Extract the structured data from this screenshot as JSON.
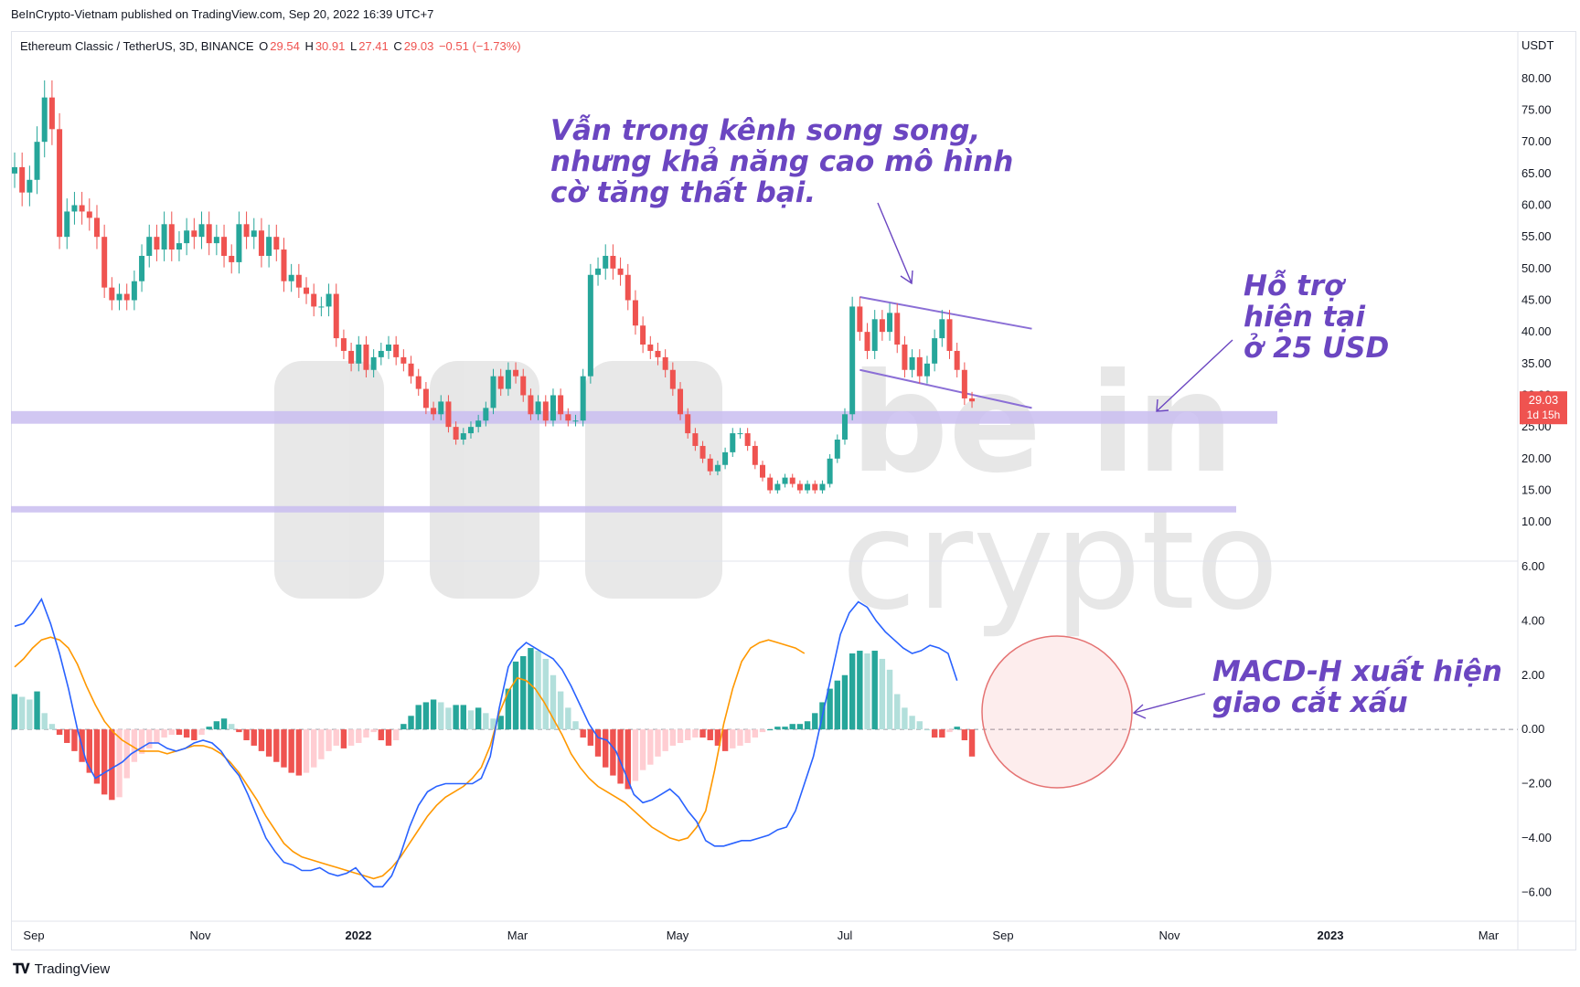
{
  "header": {
    "publisher_line": "BeInCrypto-Vietnam published on TradingView.com, Sep 20, 2022 16:39 UTC+7"
  },
  "symbol": {
    "name": "Ethereum Classic / TetherUS, 3D, BINANCE",
    "o_label": "O",
    "o_val": "29.54",
    "h_label": "H",
    "h_val": "30.91",
    "l_label": "L",
    "l_val": "27.41",
    "c_label": "C",
    "c_val": "29.03",
    "change": "−0.51 (−1.73%)"
  },
  "price_axis": {
    "currency": "USDT",
    "ticks": [
      "80.00",
      "75.00",
      "70.00",
      "65.00",
      "60.00",
      "55.00",
      "50.00",
      "45.00",
      "40.00",
      "35.00",
      "30.00",
      "25.00",
      "20.00",
      "15.00",
      "10.00"
    ],
    "last_price": "29.03",
    "countdown": "1d 15h"
  },
  "macd_axis": {
    "ticks": [
      "6.00",
      "4.00",
      "2.00",
      "0.00",
      "−2.00",
      "−4.00",
      "−6.00"
    ]
  },
  "time_axis": {
    "labels": [
      "Sep",
      "Nov",
      "2022",
      "Mar",
      "May",
      "Jul",
      "Sep",
      "Nov",
      "2023",
      "Mar"
    ]
  },
  "annotations": {
    "channel_line1": "Vẫn trong kênh song song,",
    "channel_line2": "nhưng khả năng cao mô hình",
    "channel_line3": "cờ tăng thất bại.",
    "support_line1": "Hỗ trợ",
    "support_line2": "hiện tại",
    "support_line3": "ở 25 USD",
    "macd_line1": "MACD-H xuất hiện",
    "macd_line2": "giao cắt xấu"
  },
  "watermark": {
    "line1": "be in",
    "line2": "crypto"
  },
  "footer": {
    "brand": "TradingView"
  },
  "colors": {
    "up": "#26a69a",
    "down": "#ef5350",
    "hist_up_strong": "#26a69a",
    "hist_up_weak": "#b2dfdb",
    "hist_down_strong": "#ef5350",
    "hist_down_weak": "#ffcdd2",
    "macd_line": "#2962ff",
    "signal_line": "#ff9800",
    "zone": "#c9bdf0",
    "channel": "#8b6fd6",
    "annotation": "#6b46c1"
  },
  "chart_data": [
    {
      "type": "candlestick",
      "title": "Ethereum Classic / TetherUS, 3D, BINANCE",
      "xlabel": "",
      "ylabel": "USDT",
      "ylim": [
        8,
        82
      ],
      "x_range": [
        "2021-09-01",
        "2023-03-15"
      ],
      "last_close": 29.03,
      "closes": [
        66,
        62,
        64,
        70,
        77,
        72,
        55,
        59,
        60,
        59,
        58,
        55,
        47,
        45,
        46,
        45,
        48,
        52,
        55,
        53,
        57,
        53,
        54,
        56,
        55,
        57,
        54,
        55,
        52,
        51,
        57,
        55,
        56,
        52,
        55,
        53,
        48,
        49,
        47,
        46,
        44,
        44,
        46,
        39,
        37,
        35,
        38,
        34,
        36,
        37,
        38,
        36,
        35,
        33,
        31,
        28,
        27,
        29,
        25,
        23,
        24,
        25,
        26,
        28,
        33,
        31,
        34,
        33,
        30,
        27,
        29,
        26,
        30,
        27,
        26,
        26,
        33,
        49,
        50,
        52,
        50,
        49,
        45,
        41,
        38,
        37,
        36,
        34,
        31,
        27,
        24,
        22,
        20,
        18,
        19,
        21,
        24,
        24,
        22,
        19,
        17,
        15,
        16,
        17,
        16,
        15,
        16,
        15,
        16,
        20,
        23,
        27,
        44,
        40,
        37,
        42,
        40,
        43,
        38,
        34,
        36,
        33,
        35,
        39,
        42,
        37,
        34,
        29.5,
        29.03
      ],
      "support_zones": [
        {
          "low": 25.5,
          "high": 27.5
        },
        {
          "low": 11.5,
          "high": 12.5
        }
      ],
      "channel": {
        "upper": [
          [
            113,
            45.5
          ],
          [
            136,
            40.5
          ]
        ],
        "lower": [
          [
            113,
            34.0
          ],
          [
            136,
            28.0
          ]
        ]
      }
    },
    {
      "type": "macd",
      "ylim": [
        -6.8,
        6.0
      ],
      "histogram": [
        1.3,
        1.2,
        1.1,
        1.4,
        0.6,
        0.2,
        -0.2,
        -0.5,
        -0.8,
        -1.2,
        -1.6,
        -2.0,
        -2.4,
        -2.6,
        -2.5,
        -1.8,
        -1.2,
        -0.9,
        -0.7,
        -0.5,
        -0.3,
        -0.2,
        -0.2,
        -0.3,
        -0.4,
        -0.2,
        0.1,
        0.3,
        0.4,
        0.2,
        -0.1,
        -0.4,
        -0.6,
        -0.8,
        -1.0,
        -1.2,
        -1.4,
        -1.6,
        -1.7,
        -1.6,
        -1.4,
        -1.1,
        -0.8,
        -0.6,
        -0.7,
        -0.6,
        -0.5,
        -0.3,
        -0.1,
        -0.4,
        -0.6,
        -0.4,
        0.2,
        0.5,
        0.9,
        1.0,
        1.1,
        1.0,
        0.8,
        0.9,
        0.9,
        0.7,
        0.8,
        0.6,
        0.4,
        0.5,
        1.5,
        2.5,
        2.7,
        3.0,
        2.9,
        2.6,
        2.0,
        1.4,
        0.8,
        0.3,
        -0.3,
        -0.6,
        -1.0,
        -1.4,
        -1.7,
        -2.0,
        -2.2,
        -1.9,
        -1.5,
        -1.3,
        -1.0,
        -0.8,
        -0.6,
        -0.5,
        -0.4,
        -0.3,
        -0.3,
        -0.4,
        -0.6,
        -0.8,
        -0.7,
        -0.6,
        -0.5,
        -0.3,
        -0.1,
        0.0,
        0.1,
        0.1,
        0.2,
        0.2,
        0.3,
        0.6,
        1.0,
        1.5,
        1.8,
        2.0,
        2.8,
        2.9,
        2.8,
        2.9,
        2.6,
        2.2,
        1.3,
        0.8,
        0.5,
        0.3,
        0.0,
        -0.3,
        -0.3,
        -0.1,
        0.1,
        -0.4,
        -1.0
      ],
      "macd": [
        3.8,
        3.9,
        4.3,
        4.8,
        3.9,
        2.8,
        1.5,
        0.0,
        -1.2,
        -1.8,
        -1.6,
        -1.4,
        -1.2,
        -0.9,
        -0.7,
        -0.5,
        -0.5,
        -0.7,
        -0.8,
        -0.7,
        -0.5,
        -0.4,
        -0.5,
        -0.8,
        -1.3,
        -1.7,
        -2.4,
        -3.2,
        -4.0,
        -4.5,
        -4.9,
        -5.0,
        -5.2,
        -5.2,
        -5.1,
        -5.3,
        -5.4,
        -5.3,
        -5.1,
        -5.5,
        -5.8,
        -5.8,
        -5.4,
        -4.6,
        -3.6,
        -2.8,
        -2.3,
        -2.1,
        -2.0,
        -2.0,
        -2.0,
        -2.0,
        -1.8,
        -1.0,
        0.8,
        2.3,
        2.9,
        3.2,
        3.0,
        2.8,
        2.6,
        2.2,
        1.6,
        0.9,
        0.2,
        -0.3,
        -0.4,
        -0.8,
        -1.6,
        -2.4,
        -2.7,
        -2.6,
        -2.4,
        -2.2,
        -2.5,
        -3.0,
        -3.4,
        -4.1,
        -4.3,
        -4.3,
        -4.2,
        -4.1,
        -4.1,
        -4.0,
        -3.9,
        -3.7,
        -3.6,
        -3.0,
        -2.0,
        -1.0,
        0.5,
        2.0,
        3.5,
        4.3,
        4.7,
        4.5,
        4.0,
        3.6,
        3.3,
        3.0,
        2.8,
        2.9,
        3.1,
        3.0,
        2.8,
        1.8
      ],
      "signal": [
        2.3,
        2.6,
        3.0,
        3.3,
        3.4,
        3.3,
        3.0,
        2.4,
        1.6,
        0.9,
        0.3,
        -0.1,
        -0.4,
        -0.6,
        -0.8,
        -0.8,
        -0.8,
        -0.9,
        -0.8,
        -0.7,
        -0.6,
        -0.6,
        -0.7,
        -0.9,
        -1.2,
        -1.6,
        -2.1,
        -2.6,
        -3.2,
        -3.7,
        -4.2,
        -4.5,
        -4.7,
        -4.8,
        -4.9,
        -5.0,
        -5.1,
        -5.2,
        -5.3,
        -5.4,
        -5.5,
        -5.4,
        -5.1,
        -4.7,
        -4.2,
        -3.7,
        -3.2,
        -2.8,
        -2.5,
        -2.3,
        -2.1,
        -1.8,
        -1.4,
        -0.6,
        0.6,
        1.4,
        1.9,
        1.8,
        1.5,
        1.0,
        0.4,
        -0.2,
        -0.9,
        -1.4,
        -1.8,
        -2.1,
        -2.3,
        -2.5,
        -2.7,
        -3.0,
        -3.3,
        -3.6,
        -3.8,
        -4.0,
        -4.1,
        -4.0,
        -3.6,
        -3.0,
        -1.5,
        0.2,
        1.5,
        2.5,
        3.0,
        3.2,
        3.3,
        3.2,
        3.1,
        3.0,
        2.8
      ]
    }
  ]
}
